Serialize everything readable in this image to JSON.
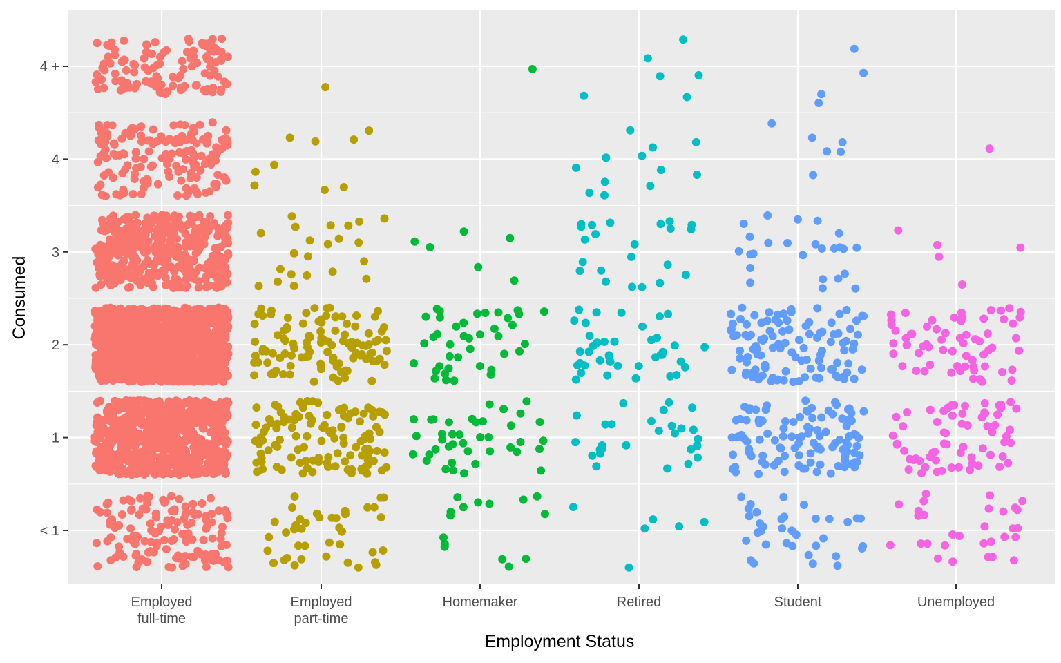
{
  "chart_data": {
    "type": "scatter",
    "jitter": true,
    "xlabel": "Employment Status",
    "ylabel": "Consumed",
    "categories": [
      [
        "Employed",
        "full-time"
      ],
      [
        "Employed",
        "part-time"
      ],
      [
        "Homemaker"
      ],
      [
        "Retired"
      ],
      [
        "Student"
      ],
      [
        "Unemployed"
      ]
    ],
    "y_levels": [
      "< 1",
      "1",
      "2",
      "3",
      "4",
      "4 +"
    ],
    "ylim": [
      -0.55,
      5.5
    ],
    "grid": true,
    "legend": "none",
    "colors": [
      "#F8766D",
      "#B79F00",
      "#00BA38",
      "#00BFC4",
      "#619CFF",
      "#F564E3"
    ],
    "series": [
      {
        "category": "Employed full-time",
        "counts": [
          140,
          700,
          1300,
          430,
          160,
          120
        ],
        "level_jitter": [
          0.4,
          0.4,
          0.4,
          0.4,
          0.4,
          0.3
        ],
        "x_jitter": 0.42
      },
      {
        "category": "Employed part-time",
        "counts": [
          40,
          120,
          110,
          22,
          9,
          1
        ],
        "level_jitter": [
          0.4,
          0.4,
          0.4,
          0.4,
          0.4,
          0.4
        ],
        "x_jitter": 0.42
      },
      {
        "category": "Homemaker",
        "counts": [
          15,
          40,
          40,
          6,
          0,
          1
        ],
        "level_jitter": [
          0.4,
          0.4,
          0.4,
          0.4,
          0.4,
          0.05
        ],
        "x_jitter": 0.42
      },
      {
        "category": "Retired",
        "counts": [
          6,
          28,
          40,
          22,
          12,
          6
        ],
        "level_jitter": [
          0.4,
          0.4,
          0.4,
          0.4,
          0.4,
          0.4
        ],
        "x_jitter": 0.42
      },
      {
        "category": "Student",
        "counts": [
          35,
          110,
          110,
          25,
          6,
          4
        ],
        "level_jitter": [
          0.4,
          0.4,
          0.4,
          0.4,
          0.4,
          0.4
        ],
        "x_jitter": 0.42
      },
      {
        "category": "Unemployed",
        "counts": [
          30,
          65,
          65,
          5,
          1,
          0
        ],
        "level_jitter": [
          0.4,
          0.4,
          0.4,
          0.4,
          0.4,
          0.4
        ],
        "x_jitter": 0.42
      }
    ]
  }
}
